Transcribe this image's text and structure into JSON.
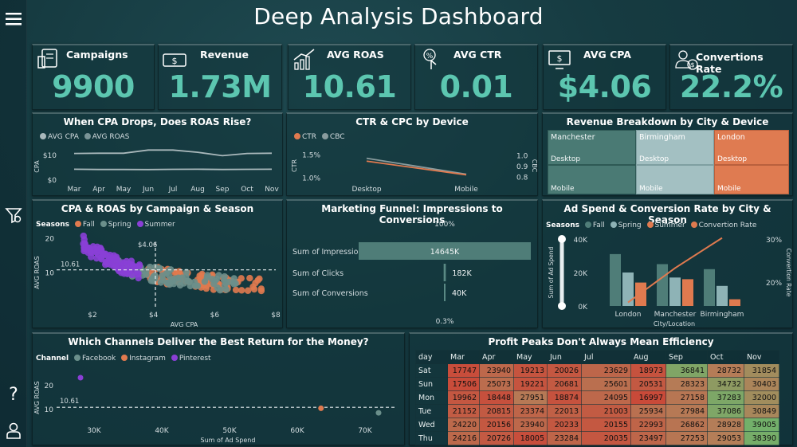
{
  "title": "Deep Analysis Dashboard",
  "colors": {
    "accent": "#5cc6b0",
    "fall": "#4f7d78",
    "spring": "#8eb3b6",
    "summer": "#8a3fd6",
    "orange": "#e07a4f"
  },
  "kpis": [
    {
      "label": "Campaigns",
      "value": "9900",
      "icon": "campaign-icon"
    },
    {
      "label": "Revenue",
      "value": "1.73M",
      "icon": "money-icon"
    },
    {
      "label": "AVG ROAS",
      "value": "10.61",
      "icon": "growth-chart-icon"
    },
    {
      "label": "AVG CTR",
      "value": "0.01",
      "icon": "click-icon"
    },
    {
      "label": "AVG CPA",
      "value": "$4.06",
      "icon": "monitor-dollar-icon"
    },
    {
      "label": "Convertions Rate",
      "value": "22.2%",
      "icon": "conversion-icon"
    }
  ],
  "chart_data": [
    {
      "id": "cpa-roas",
      "type": "line",
      "title": "When CPA Drops, Does ROAS Rise?",
      "categories": [
        "Mar",
        "Apr",
        "May",
        "Jun",
        "Jul",
        "Aug",
        "Sep",
        "Oct",
        "Nov"
      ],
      "series": [
        {
          "name": "AVG CPA",
          "values": [
            4.1,
            4.0,
            4.0,
            3.95,
            4.05,
            4.1,
            4.0,
            4.05,
            4.1
          ]
        },
        {
          "name": "AVG ROAS",
          "values": [
            10.5,
            10.6,
            10.6,
            11.9,
            11.9,
            11.0,
            9.6,
            10.5,
            10.6
          ]
        }
      ],
      "ylabel": "CPA",
      "yticks": [
        "$10",
        "$0"
      ]
    },
    {
      "id": "ctr-cbc",
      "type": "line",
      "title": "CTR & CPC by Device",
      "categories": [
        "Desktop",
        "Mobile"
      ],
      "series": [
        {
          "name": "CTR",
          "values": [
            1.35,
            1.05
          ]
        },
        {
          "name": "CBC",
          "values": [
            0.97,
            0.82
          ]
        }
      ],
      "ylabel": "CTR",
      "y2label": "CBC",
      "yticks": [
        "1.5%",
        "1.0%"
      ],
      "y2ticks": [
        "1.0",
        "0.9",
        "0.8"
      ]
    },
    {
      "id": "treemap",
      "type": "heatmap",
      "title": "Revenue Breakdown by City & Device",
      "cells": [
        {
          "city": "Manchester",
          "device_top": "Desktop",
          "device_bottom": "Mobile"
        },
        {
          "city": "Birmingham",
          "device_top": "Desktop",
          "device_bottom": "Mobile"
        },
        {
          "city": "London",
          "device_top": "Desktop",
          "device_bottom": "Mobile"
        }
      ]
    },
    {
      "id": "cpa-roas-scatter",
      "type": "scatter",
      "title": "CPA & ROAS by Campaign & Season",
      "legend_title": "Seasons",
      "legend": [
        "Fall",
        "Spring",
        "Summer"
      ],
      "xlabel": "AVG CPA",
      "ylabel": "AVG ROAS",
      "xticks": [
        "$2",
        "$4",
        "$6",
        "$8"
      ],
      "yticks": [
        "20",
        "10"
      ],
      "ref_y_label": "10.61",
      "ref_x_label": "$4.06"
    },
    {
      "id": "funnel",
      "type": "bar",
      "title": "Marketing Funnel: Impressions to Conversions",
      "categories": [
        "Sum of Impressions",
        "Sum of Clicks",
        "Sum of Conversions"
      ],
      "values": [
        14645000,
        182000,
        40000
      ],
      "value_labels": [
        "14645K",
        "182K",
        "40K"
      ],
      "top_label": "100%",
      "bottom_label": "0.3%"
    },
    {
      "id": "adspend-city",
      "type": "bar",
      "title": "Ad Spend & Conversion Rate by City & Season",
      "legend_title": "Seasons",
      "legend": [
        "Fall",
        "Spring",
        "Summer",
        "Convertion Rate"
      ],
      "categories": [
        "London",
        "Manchester",
        "Birmingham"
      ],
      "series": [
        {
          "name": "Fall",
          "values": [
            31000,
            25000,
            22000
          ]
        },
        {
          "name": "Spring",
          "values": [
            20000,
            17000,
            12000
          ]
        },
        {
          "name": "Summer",
          "values": [
            14000,
            16000,
            4000
          ]
        }
      ],
      "rate_values": [
        0.16,
        0.24,
        0.31
      ],
      "xlabel": "City/Location",
      "ylabel": "Sum of Ad Spend",
      "y2label": "Convertion Rate",
      "yticks": [
        "40K",
        "20K",
        "0K"
      ],
      "y2ticks": [
        "30%",
        "20%"
      ]
    },
    {
      "id": "channels",
      "type": "scatter",
      "title": "Which Channels Deliver the Best Return for the Money?",
      "legend_title": "Channel",
      "legend": [
        "Facebook",
        "Instagram",
        "Pinterest"
      ],
      "points": [
        {
          "channel": "Pinterest",
          "x": 28000,
          "y": 23
        },
        {
          "channel": "Instagram",
          "x": 63500,
          "y": 10.2
        },
        {
          "channel": "Facebook",
          "x": 72000,
          "y": 8.3
        }
      ],
      "xlabel": "Sum of Ad Spend",
      "ylabel": "AVG ROAS",
      "xticks": [
        "30K",
        "40K",
        "50K",
        "60K",
        "70K"
      ],
      "yticks": [
        "20",
        "10"
      ],
      "ref_y_label": "10.61"
    },
    {
      "id": "profit-heatmap",
      "type": "table",
      "title": "Profit Peaks Don't Always Mean Efficiency",
      "columns": [
        "day",
        "Mar",
        "Apr",
        "May",
        "Jun",
        "Jul",
        "Aug",
        "Sep",
        "Oct",
        "Nov"
      ],
      "rows": [
        [
          "Sat",
          17747,
          23940,
          19213,
          20026,
          23629,
          18973,
          36841,
          28732,
          31854
        ],
        [
          "Sun",
          17506,
          25073,
          19221,
          20681,
          25601,
          20531,
          28323,
          34732,
          30403
        ],
        [
          "Mon",
          19962,
          18448,
          27951,
          18874,
          24095,
          16997,
          27158,
          37283,
          32000
        ],
        [
          "Tue",
          21152,
          20815,
          23374,
          22013,
          21003,
          25934,
          27984,
          37086,
          30849
        ],
        [
          "Wed",
          24220,
          20156,
          23940,
          20233,
          20155,
          22993,
          26862,
          28928,
          39005
        ],
        [
          "Thu",
          24216,
          20726,
          18005,
          23284,
          20035,
          23497,
          27253,
          29053,
          38390
        ]
      ]
    }
  ]
}
